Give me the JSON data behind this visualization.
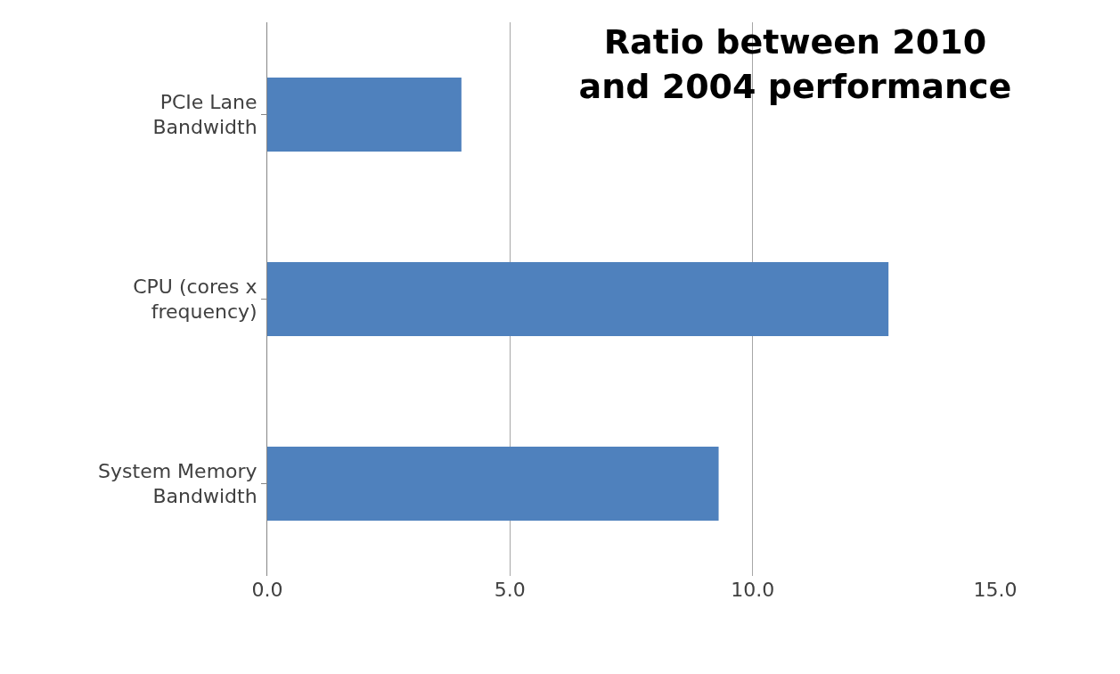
{
  "chart_data": {
    "type": "bar",
    "orientation": "horizontal",
    "title": "Ratio between 2010 and 2004 performance",
    "categories": [
      "PCIe Lane Bandwidth",
      "CPU (cores x frequency)",
      "System Memory Bandwidth"
    ],
    "values": [
      4.0,
      12.8,
      9.3
    ],
    "color": "#4f81bd",
    "xlim": [
      0,
      15
    ],
    "xticks": [
      {
        "value": 0,
        "label": "0.0"
      },
      {
        "value": 5,
        "label": "5.0"
      },
      {
        "value": 10,
        "label": "10.0"
      },
      {
        "value": 15,
        "label": "15.0"
      }
    ],
    "grid": "x"
  }
}
